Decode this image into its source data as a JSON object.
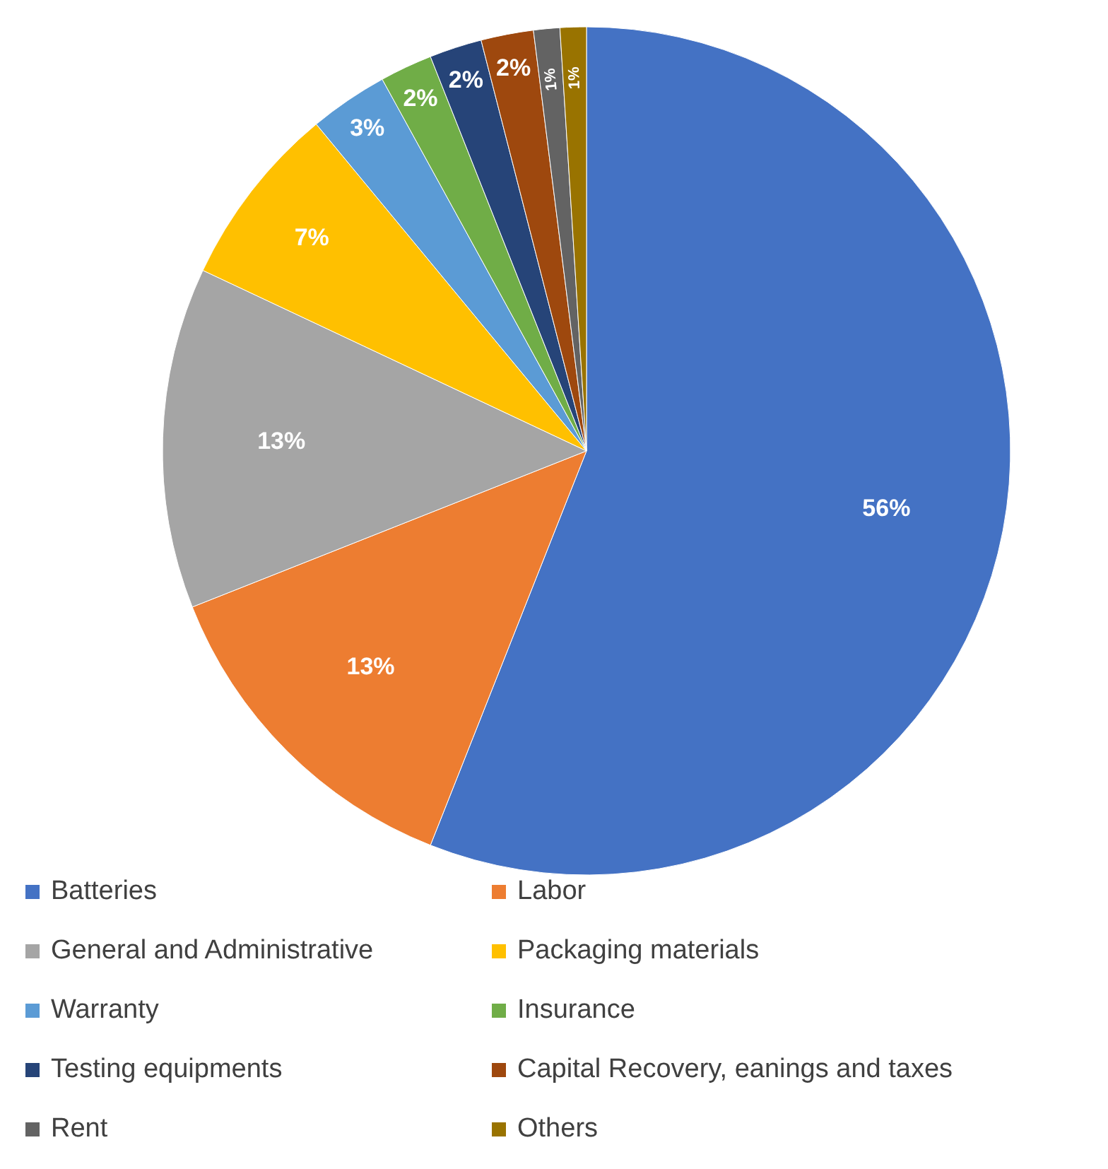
{
  "chart_data": {
    "type": "pie",
    "categories": [
      "Batteries",
      "Labor",
      "General and Administrative",
      "Packaging materials",
      "Warranty",
      "Insurance",
      "Testing equipments",
      "Capital Recovery, eanings and taxes",
      "Rent",
      "Others"
    ],
    "values": [
      56,
      13,
      13,
      7,
      3,
      2,
      2,
      2,
      1,
      1
    ],
    "colors": [
      "#4472c4",
      "#ed7d31",
      "#a5a5a5",
      "#ffc000",
      "#5b9bd5",
      "#70ad47",
      "#264478",
      "#9e480e",
      "#636363",
      "#997300"
    ],
    "value_labels": [
      "56%",
      "13%",
      "13%",
      "7%",
      "3%",
      "2%",
      "2%",
      "2%",
      "1%",
      "1%"
    ],
    "legend": "bottom"
  }
}
